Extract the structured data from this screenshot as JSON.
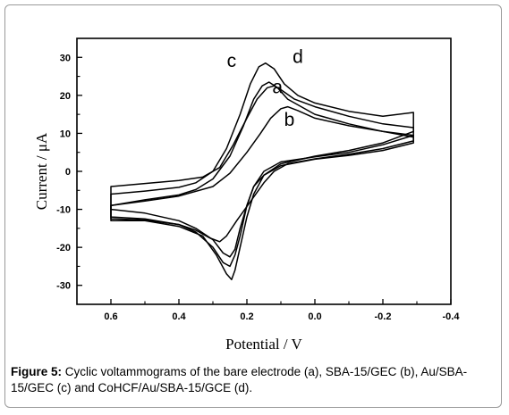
{
  "caption": {
    "label": "Figure 5:",
    "text": " Cyclic voltammograms of the bare electrode (a), SBA-15/GEC (b), Au/SBA-15/GEC (c) and CoHCF/Au/SBA-15/GCE (d)."
  },
  "chart_data": {
    "type": "line",
    "title": "",
    "xlabel": "Potential / V",
    "ylabel": "Current / μA",
    "xlim": [
      0.7,
      -0.4
    ],
    "ylim": [
      -35,
      35
    ],
    "x_reversed": true,
    "x_ticks": [
      0.6,
      0.4,
      0.2,
      0.0,
      -0.2,
      -0.4
    ],
    "x_tick_labels": [
      "0.6",
      "0.4",
      "0.2",
      "0.0",
      "-0.2",
      "-0.4"
    ],
    "y_ticks": [
      30,
      20,
      10,
      0,
      -10,
      -20,
      -30
    ],
    "y_tick_labels": [
      "30",
      "20",
      "10",
      "0",
      "-10",
      "-20",
      "-30"
    ],
    "grid": false,
    "line_color": "#000000",
    "series": [
      {
        "name": "a",
        "label_pos": [
          0.11,
          20.5
        ],
        "points": [
          [
            0.6,
            -9
          ],
          [
            0.5,
            -7.5
          ],
          [
            0.4,
            -6.2
          ],
          [
            0.35,
            -4.8
          ],
          [
            0.3,
            -2
          ],
          [
            0.25,
            4
          ],
          [
            0.21,
            12
          ],
          [
            0.18,
            19
          ],
          [
            0.155,
            22.5
          ],
          [
            0.135,
            23.5
          ],
          [
            0.11,
            22
          ],
          [
            0.08,
            19
          ],
          [
            0.0,
            15
          ],
          [
            -0.1,
            12.5
          ],
          [
            -0.2,
            10.5
          ],
          [
            -0.29,
            9
          ],
          [
            -0.29,
            7.5
          ],
          [
            -0.2,
            5.5
          ],
          [
            -0.1,
            4.2
          ],
          [
            0.0,
            3.2
          ],
          [
            0.1,
            1.5
          ],
          [
            0.15,
            -1
          ],
          [
            0.18,
            -4
          ],
          [
            0.2,
            -9
          ],
          [
            0.22,
            -15
          ],
          [
            0.235,
            -20.5
          ],
          [
            0.25,
            -22.5
          ],
          [
            0.27,
            -21.5
          ],
          [
            0.3,
            -18
          ],
          [
            0.35,
            -15
          ],
          [
            0.4,
            -13
          ],
          [
            0.5,
            -11
          ],
          [
            0.6,
            -10
          ]
        ]
      },
      {
        "name": "b",
        "label_pos": [
          0.075,
          12
        ],
        "points": [
          [
            0.6,
            -9
          ],
          [
            0.5,
            -7.8
          ],
          [
            0.4,
            -6.5
          ],
          [
            0.3,
            -4
          ],
          [
            0.25,
            -0.5
          ],
          [
            0.2,
            5
          ],
          [
            0.16,
            10
          ],
          [
            0.13,
            14
          ],
          [
            0.1,
            16.5
          ],
          [
            0.08,
            17
          ],
          [
            0.05,
            16
          ],
          [
            0.0,
            14
          ],
          [
            -0.1,
            12
          ],
          [
            -0.2,
            10.5
          ],
          [
            -0.29,
            9.5
          ],
          [
            -0.29,
            8
          ],
          [
            -0.2,
            6
          ],
          [
            -0.1,
            4.5
          ],
          [
            0.0,
            3.3
          ],
          [
            0.08,
            2
          ],
          [
            0.12,
            0
          ],
          [
            0.15,
            -3
          ],
          [
            0.19,
            -8
          ],
          [
            0.23,
            -13
          ],
          [
            0.26,
            -17
          ],
          [
            0.28,
            -18.5
          ],
          [
            0.31,
            -17.5
          ],
          [
            0.35,
            -15.5
          ],
          [
            0.4,
            -14
          ],
          [
            0.5,
            -12.5
          ],
          [
            0.6,
            -12
          ]
        ]
      },
      {
        "name": "c",
        "label_pos": [
          0.245,
          27.5
        ],
        "points": [
          [
            0.6,
            -6
          ],
          [
            0.5,
            -5.2
          ],
          [
            0.4,
            -4.2
          ],
          [
            0.35,
            -3
          ],
          [
            0.3,
            0
          ],
          [
            0.26,
            6
          ],
          [
            0.22,
            15
          ],
          [
            0.19,
            23
          ],
          [
            0.165,
            27.5
          ],
          [
            0.145,
            28.5
          ],
          [
            0.12,
            27
          ],
          [
            0.09,
            23
          ],
          [
            0.05,
            20
          ],
          [
            0.0,
            18
          ],
          [
            -0.1,
            15.8
          ],
          [
            -0.2,
            14.5
          ],
          [
            -0.29,
            15.5
          ],
          [
            -0.29,
            10.5
          ],
          [
            -0.2,
            7.5
          ],
          [
            -0.1,
            5.5
          ],
          [
            0.0,
            4
          ],
          [
            0.1,
            2
          ],
          [
            0.15,
            -1
          ],
          [
            0.18,
            -6
          ],
          [
            0.2,
            -12
          ],
          [
            0.22,
            -20
          ],
          [
            0.235,
            -26
          ],
          [
            0.245,
            -28.5
          ],
          [
            0.26,
            -27
          ],
          [
            0.29,
            -22
          ],
          [
            0.33,
            -17
          ],
          [
            0.4,
            -14.5
          ],
          [
            0.5,
            -13
          ],
          [
            0.6,
            -13
          ]
        ]
      },
      {
        "name": "d",
        "label_pos": [
          0.05,
          28.5
        ],
        "points": [
          [
            0.6,
            -4
          ],
          [
            0.5,
            -3.2
          ],
          [
            0.4,
            -2.4
          ],
          [
            0.33,
            -1.5
          ],
          [
            0.28,
            1
          ],
          [
            0.24,
            7
          ],
          [
            0.2,
            14
          ],
          [
            0.17,
            19
          ],
          [
            0.14,
            22
          ],
          [
            0.12,
            22.5
          ],
          [
            0.1,
            21.5
          ],
          [
            0.06,
            19
          ],
          [
            0.0,
            17
          ],
          [
            -0.1,
            14.5
          ],
          [
            -0.2,
            12.5
          ],
          [
            -0.29,
            11.5
          ],
          [
            -0.29,
            9.5
          ],
          [
            -0.2,
            7
          ],
          [
            -0.1,
            5
          ],
          [
            0.0,
            3.8
          ],
          [
            0.1,
            2.5
          ],
          [
            0.15,
            0
          ],
          [
            0.18,
            -4
          ],
          [
            0.2,
            -9
          ],
          [
            0.22,
            -17
          ],
          [
            0.235,
            -22
          ],
          [
            0.25,
            -25
          ],
          [
            0.27,
            -24
          ],
          [
            0.3,
            -20
          ],
          [
            0.35,
            -16
          ],
          [
            0.4,
            -14
          ],
          [
            0.5,
            -12.8
          ],
          [
            0.6,
            -12.5
          ]
        ]
      }
    ]
  }
}
